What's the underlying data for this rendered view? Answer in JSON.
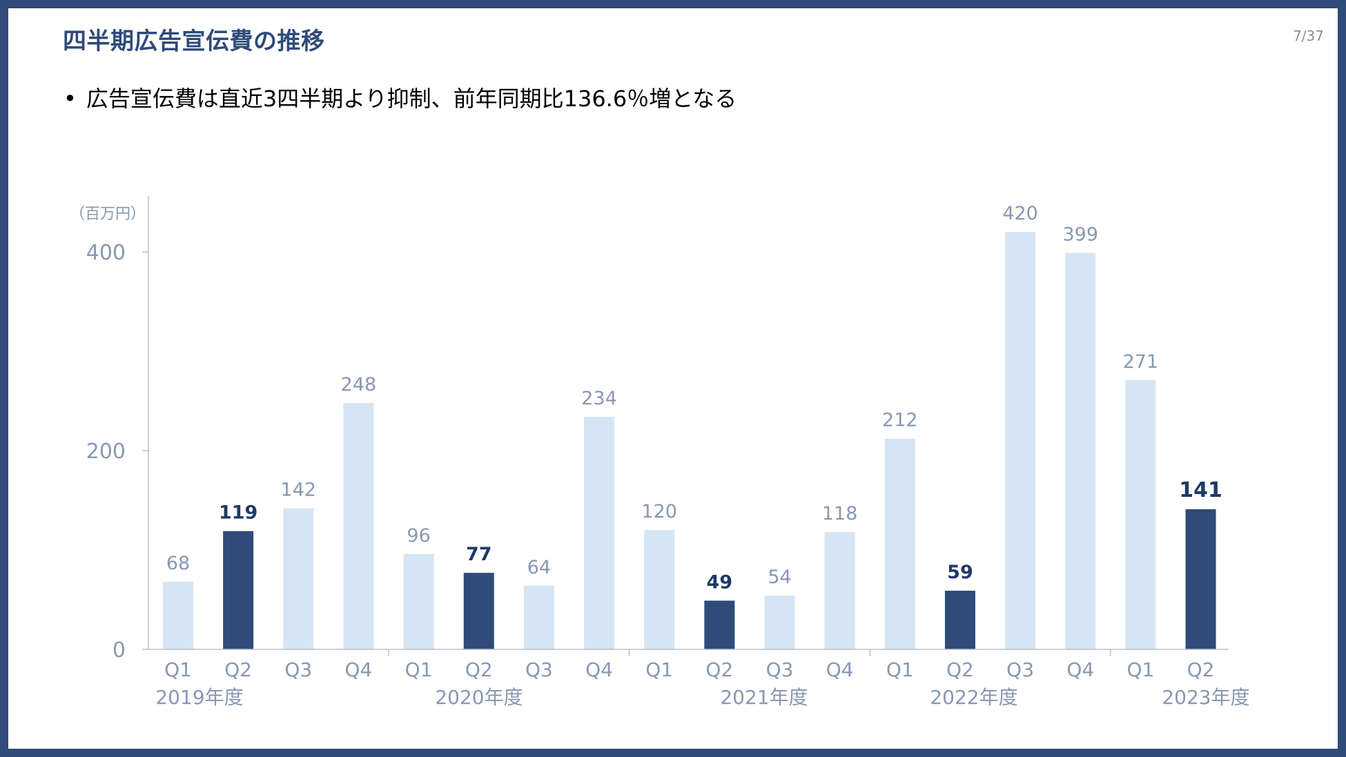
{
  "slide": {
    "title": "四半期広告宣伝費の推移",
    "page_number": "7/37",
    "bullet_marker": "•",
    "bullet_text": "広告宣伝費は直近3四半期より抑制、前年同期比136.6％増となる"
  },
  "colors": {
    "border": "#2e4b79",
    "title": "#2e4b79",
    "bar_light": "#d6e5f4",
    "bar_dark": "#2e4b79",
    "axis_text": "#8898b2",
    "highlight_text": "#1f3a66"
  },
  "chart_data": {
    "type": "bar",
    "unit_label": "（百万円）",
    "ylim": [
      0,
      440
    ],
    "yticks": [
      0,
      200,
      400
    ],
    "grid": false,
    "categories": [
      "Q1",
      "Q2",
      "Q3",
      "Q4",
      "Q1",
      "Q2",
      "Q3",
      "Q4",
      "Q1",
      "Q2",
      "Q3",
      "Q4",
      "Q1",
      "Q2",
      "Q3",
      "Q4",
      "Q1",
      "Q2"
    ],
    "values": [
      68,
      119,
      142,
      248,
      96,
      77,
      64,
      234,
      120,
      49,
      54,
      118,
      212,
      59,
      420,
      399,
      271,
      141
    ],
    "highlighted": [
      false,
      true,
      false,
      false,
      false,
      true,
      false,
      false,
      false,
      true,
      false,
      false,
      false,
      true,
      false,
      false,
      false,
      true
    ],
    "groups": [
      {
        "label": "2019年度",
        "start": 0,
        "end": 3
      },
      {
        "label": "2020年度",
        "start": 4,
        "end": 7
      },
      {
        "label": "2021年度",
        "start": 8,
        "end": 11
      },
      {
        "label": "2022年度",
        "start": 12,
        "end": 15
      },
      {
        "label": "2023年度",
        "start": 16,
        "end": 17
      }
    ]
  }
}
